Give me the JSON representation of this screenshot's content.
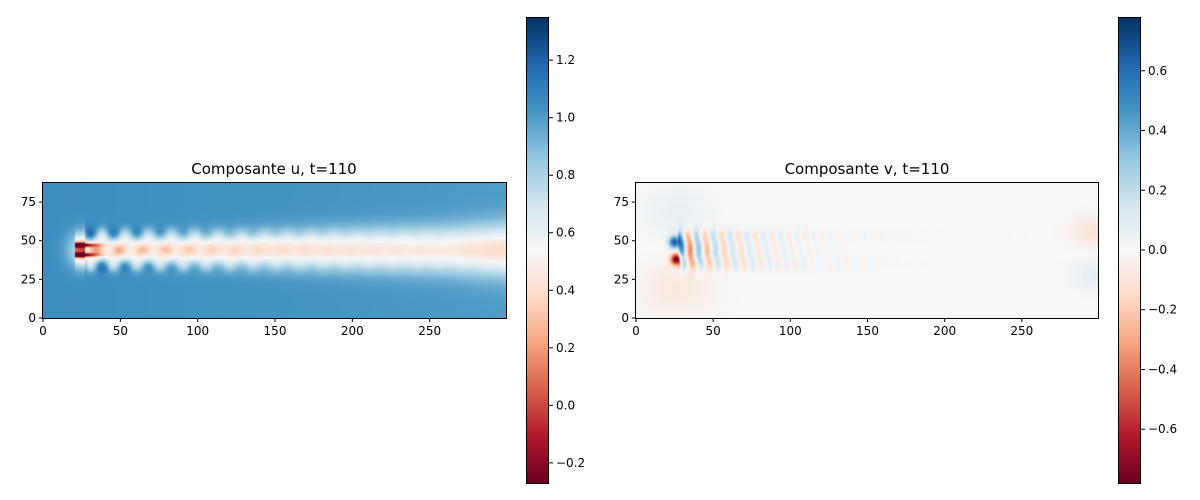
{
  "chart_data": [
    {
      "type": "heatmap",
      "title": "Composante u, t=110",
      "xlim": [
        0,
        300
      ],
      "ylim": [
        0,
        88
      ],
      "xticks": [
        0,
        50,
        100,
        150,
        200,
        250
      ],
      "xtick_labels": [
        "0",
        "50",
        "100",
        "150",
        "200",
        "250"
      ],
      "yticks": [
        0,
        25,
        50,
        75
      ],
      "ytick_labels": [
        "0",
        "25",
        "50",
        "75"
      ],
      "colormap": "RdBu",
      "colorbar": {
        "vmin": -0.27,
        "vmax": 1.35,
        "ticks": [
          -0.2,
          0.0,
          0.2,
          0.4,
          0.6,
          0.8,
          1.0,
          1.2
        ],
        "tick_labels": [
          "−0.2",
          "0.0",
          "0.2",
          "0.4",
          "0.6",
          "0.8",
          "1.0",
          "1.2"
        ]
      },
      "field": {
        "background": 1.05,
        "obstacle_x": 27,
        "wake_center_y": 44,
        "wake_core_value": 0.35,
        "wake_edge_value": 0.55,
        "wake_end_x": 300,
        "near_wake_min": -0.25,
        "vortex_shedding": true
      }
    },
    {
      "type": "heatmap",
      "title": "Composante v, t=110",
      "xlim": [
        0,
        300
      ],
      "ylim": [
        0,
        88
      ],
      "xticks": [
        0,
        50,
        100,
        150,
        200,
        250
      ],
      "xtick_labels": [
        "0",
        "50",
        "100",
        "150",
        "200",
        "250"
      ],
      "yticks": [
        0,
        25,
        50,
        75
      ],
      "ytick_labels": [
        "0",
        "25",
        "50",
        "75"
      ],
      "colormap": "RdBu",
      "colorbar": {
        "vmin": -0.78,
        "vmax": 0.78,
        "ticks": [
          -0.6,
          -0.4,
          -0.2,
          0.0,
          0.2,
          0.4,
          0.6
        ],
        "tick_labels": [
          "−0.6",
          "−0.4",
          "−0.2",
          "0.0",
          "0.2",
          "0.4",
          "0.6"
        ]
      },
      "field": {
        "background": 0.0,
        "obstacle_x": 27,
        "wake_center_y": 44,
        "near_wake_max": 0.78,
        "near_wake_min": -0.78,
        "vortex_shedding": true
      }
    }
  ]
}
